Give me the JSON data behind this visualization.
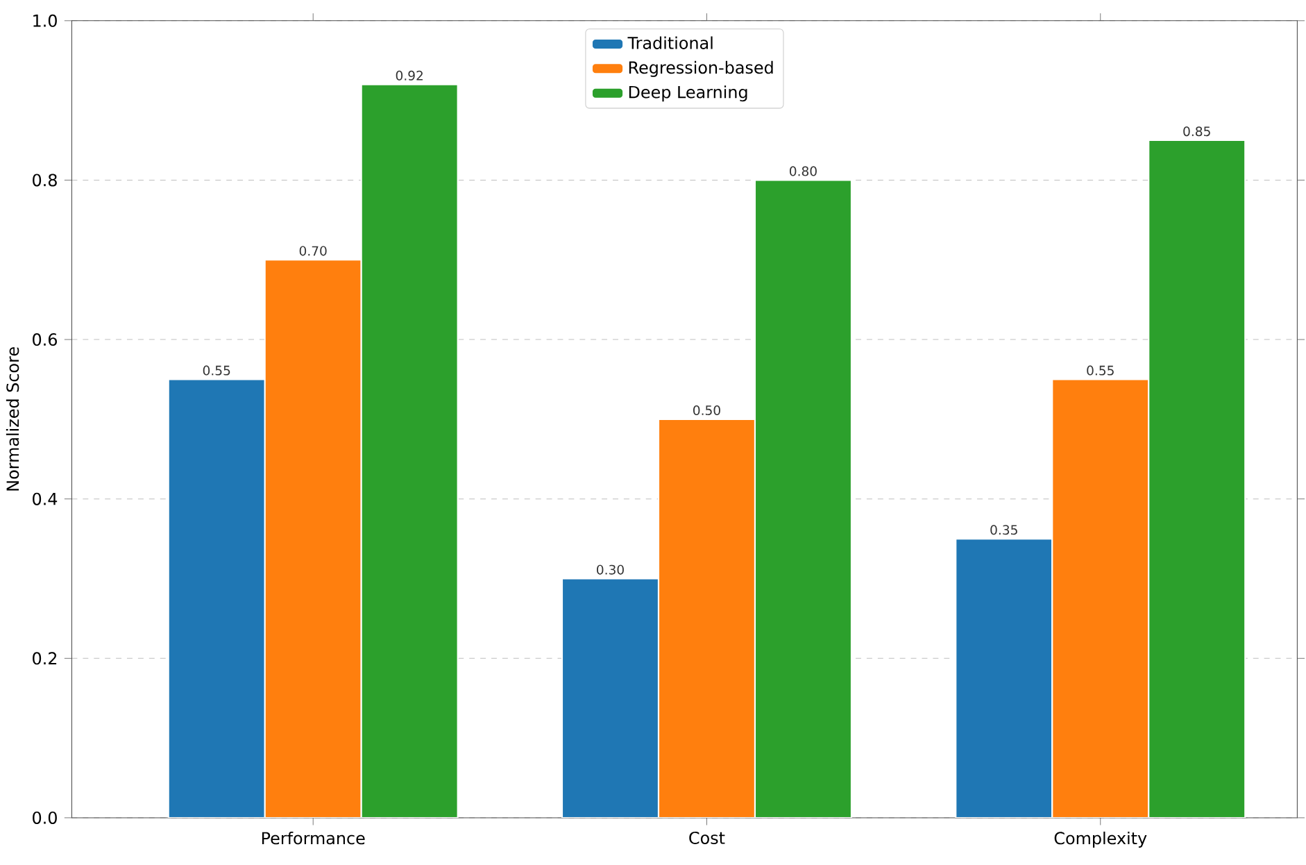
{
  "chart_data": {
    "type": "bar",
    "ylabel": "Normalized Score",
    "categories": [
      "Performance",
      "Cost",
      "Complexity"
    ],
    "series": [
      {
        "name": "Traditional",
        "color": "#1f77b4",
        "values": [
          0.55,
          0.3,
          0.35
        ],
        "value_labels": [
          "0.55",
          "0.30",
          "0.35"
        ]
      },
      {
        "name": "Regression-based",
        "color": "#ff7f0e",
        "values": [
          0.7,
          0.5,
          0.55
        ],
        "value_labels": [
          "0.70",
          "0.50",
          "0.55"
        ]
      },
      {
        "name": "Deep Learning",
        "color": "#2ca02c",
        "values": [
          0.92,
          0.8,
          0.85
        ],
        "value_labels": [
          "0.92",
          "0.80",
          "0.85"
        ]
      }
    ],
    "ylim": [
      0.0,
      1.0
    ],
    "yticks": [
      {
        "value": 0.0,
        "label": "0.0"
      },
      0.2,
      0.4,
      0.6,
      0.8,
      {
        "value": 1.0,
        "label": "1.0"
      }
    ],
    "grid": "y",
    "legend": "top"
  }
}
